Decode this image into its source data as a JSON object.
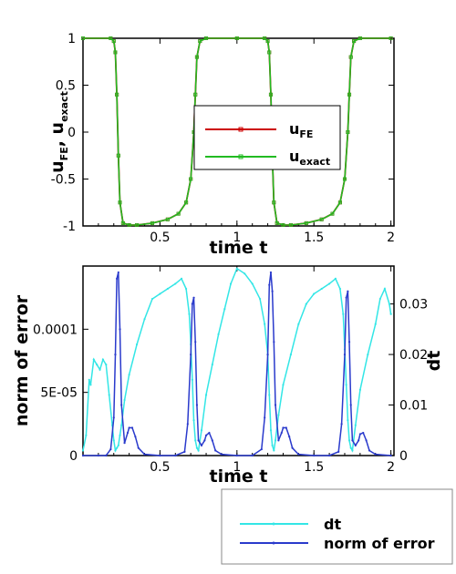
{
  "chart_data": [
    {
      "type": "line",
      "xlabel": "time t",
      "ylabel": {
        "main1": "u",
        "sub1": "FE",
        "sep": ", ",
        "main2": "u",
        "sub2": "exact"
      },
      "xlim": [
        0,
        2.02
      ],
      "ylim": [
        -1,
        1
      ],
      "xticks": [
        0.5,
        1,
        1.5,
        2
      ],
      "xtick_labels": [
        "0.5",
        "1",
        "1.5",
        "2"
      ],
      "yticks": [
        1,
        0.5,
        0,
        -0.5,
        -1
      ],
      "ytick_labels": [
        "1",
        "0.5",
        "0",
        "-0.5",
        "-1"
      ],
      "grid": false,
      "legend_position": "center-right",
      "series": [
        {
          "name": {
            "main": "u",
            "sub": "FE"
          },
          "color": "#cc0000",
          "marker": "square",
          "period": 1.0,
          "profile": {
            "t": [
              0,
              0.18,
              0.2,
              0.21,
              0.22,
              0.23,
              0.24,
              0.26,
              0.3,
              0.35,
              0.45,
              0.55,
              0.62,
              0.67,
              0.7,
              0.72,
              0.73,
              0.74,
              0.76,
              0.8,
              1.0
            ],
            "u": [
              1,
              1,
              0.97,
              0.85,
              0.4,
              -0.25,
              -0.75,
              -0.97,
              -0.99,
              -0.99,
              -0.97,
              -0.93,
              -0.87,
              -0.75,
              -0.5,
              0.0,
              0.4,
              0.8,
              0.97,
              1,
              1
            ]
          }
        },
        {
          "name": {
            "main": "u",
            "sub": "exact"
          },
          "color": "#22bb22",
          "marker": "square",
          "period": 1.0,
          "profile": {
            "t": [
              0,
              0.18,
              0.2,
              0.21,
              0.22,
              0.23,
              0.24,
              0.26,
              0.3,
              0.35,
              0.45,
              0.55,
              0.62,
              0.67,
              0.7,
              0.72,
              0.73,
              0.74,
              0.76,
              0.8,
              1.0
            ],
            "u": [
              1,
              1,
              0.97,
              0.85,
              0.4,
              -0.25,
              -0.75,
              -0.97,
              -0.99,
              -0.99,
              -0.97,
              -0.93,
              -0.87,
              -0.75,
              -0.5,
              0.0,
              0.4,
              0.8,
              0.97,
              1,
              1
            ]
          }
        }
      ]
    },
    {
      "type": "line",
      "xlabel": "time t",
      "ylabel": "norm of error",
      "y2label": "dt",
      "xlim": [
        0,
        2.02
      ],
      "ylim": [
        0,
        0.00015
      ],
      "y2lim": [
        0,
        0.0375
      ],
      "xticks": [
        0.5,
        1,
        1.5,
        2
      ],
      "xtick_labels": [
        "0.5",
        "1",
        "1.5",
        "2"
      ],
      "yticks": [
        0.0001,
        5e-05,
        0
      ],
      "ytick_labels": [
        "0.0001",
        "5E-05",
        "0"
      ],
      "y2ticks": [
        0.03,
        0.02,
        0.01,
        0
      ],
      "y2tick_labels": [
        "0.03",
        "0.02",
        "0.01",
        "0"
      ],
      "grid": false,
      "legend_position": "below",
      "series": [
        {
          "name": "dt",
          "color": "#33e6e6",
          "marker": "small-dot",
          "axis": "right",
          "x": [
            0,
            0.02,
            0.04,
            0.05,
            0.07,
            0.09,
            0.11,
            0.13,
            0.15,
            0.17,
            0.19,
            0.2,
            0.21,
            0.22,
            0.23,
            0.24,
            0.25,
            0.27,
            0.3,
            0.35,
            0.4,
            0.45,
            0.5,
            0.55,
            0.6,
            0.64,
            0.67,
            0.69,
            0.7,
            0.71,
            0.72,
            0.73,
            0.74,
            0.75,
            0.77,
            0.8,
            0.84,
            0.88,
            0.92,
            0.96,
            1.0,
            1.05,
            1.1,
            1.15,
            1.18,
            1.2,
            1.21,
            1.22,
            1.23,
            1.24,
            1.25,
            1.27,
            1.3,
            1.35,
            1.4,
            1.45,
            1.5,
            1.55,
            1.6,
            1.64,
            1.67,
            1.69,
            1.7,
            1.71,
            1.72,
            1.73,
            1.74,
            1.75,
            1.77,
            1.8,
            1.85,
            1.9,
            1.93,
            1.96,
            1.99,
            2.0
          ],
          "y": [
            0.001,
            0.004,
            0.015,
            0.014,
            0.019,
            0.018,
            0.017,
            0.019,
            0.018,
            0.012,
            0.006,
            0.003,
            0.001,
            0.0015,
            0.002,
            0.004,
            0.006,
            0.011,
            0.016,
            0.022,
            0.027,
            0.031,
            0.032,
            0.033,
            0.034,
            0.035,
            0.033,
            0.028,
            0.022,
            0.015,
            0.007,
            0.003,
            0.0015,
            0.001,
            0.005,
            0.012,
            0.018,
            0.024,
            0.029,
            0.034,
            0.037,
            0.036,
            0.034,
            0.031,
            0.026,
            0.02,
            0.012,
            0.005,
            0.002,
            0.001,
            0.003,
            0.008,
            0.014,
            0.02,
            0.026,
            0.03,
            0.032,
            0.033,
            0.034,
            0.035,
            0.033,
            0.028,
            0.021,
            0.014,
            0.007,
            0.003,
            0.0015,
            0.001,
            0.006,
            0.013,
            0.02,
            0.026,
            0.031,
            0.033,
            0.03,
            0.028
          ]
        },
        {
          "name": "norm of error",
          "color": "#2a3acc",
          "marker": "small-dot",
          "axis": "left",
          "x": [
            0,
            0.1,
            0.15,
            0.18,
            0.2,
            0.21,
            0.22,
            0.23,
            0.24,
            0.25,
            0.27,
            0.29,
            0.3,
            0.32,
            0.34,
            0.36,
            0.4,
            0.5,
            0.6,
            0.66,
            0.68,
            0.7,
            0.71,
            0.72,
            0.73,
            0.74,
            0.75,
            0.77,
            0.79,
            0.8,
            0.82,
            0.84,
            0.86,
            0.9,
            1.0,
            1.1,
            1.16,
            1.18,
            1.2,
            1.21,
            1.22,
            1.23,
            1.24,
            1.25,
            1.27,
            1.29,
            1.3,
            1.32,
            1.34,
            1.36,
            1.4,
            1.5,
            1.6,
            1.66,
            1.68,
            1.7,
            1.71,
            1.72,
            1.73,
            1.74,
            1.75,
            1.77,
            1.79,
            1.8,
            1.82,
            1.84,
            1.86,
            1.9,
            2.0
          ],
          "y": [
            0,
            0,
            0,
            5e-06,
            3e-05,
            8e-05,
            0.00014,
            0.000145,
            0.0001,
            4e-05,
            1e-05,
            1.8e-05,
            2.2e-05,
            2.2e-05,
            1.5e-05,
            6e-06,
            1e-06,
            0,
            0,
            3e-06,
            2.5e-05,
            8e-05,
            0.00012,
            0.000125,
            9e-05,
            4e-05,
            1.2e-05,
            8e-06,
            1.2e-05,
            1.6e-05,
            1.8e-05,
            1.2e-05,
            4e-06,
            1e-06,
            0,
            0,
            5e-06,
            3e-05,
            8e-05,
            0.000135,
            0.000145,
            0.00013,
            9e-05,
            4e-05,
            1.2e-05,
            1.8e-05,
            2.2e-05,
            2.2e-05,
            1.5e-05,
            6e-06,
            1e-06,
            0,
            0,
            3e-06,
            2.5e-05,
            8e-05,
            0.000125,
            0.00013,
            9e-05,
            4e-05,
            1.2e-05,
            8e-06,
            1.2e-05,
            1.7e-05,
            1.8e-05,
            1.2e-05,
            4e-06,
            1e-06,
            0
          ]
        }
      ]
    }
  ]
}
